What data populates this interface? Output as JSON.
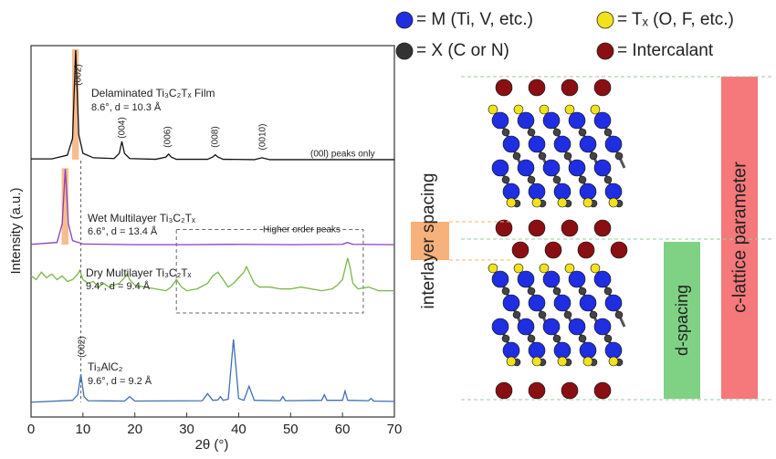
{
  "chart_data": {
    "type": "line",
    "x_label": "2θ (°)",
    "y_label": "Intensity (a.u.)",
    "xlim": [
      0,
      70
    ],
    "xticks": [
      0,
      10,
      20,
      30,
      40,
      50,
      60,
      70
    ],
    "ylim": [
      0,
      100
    ],
    "series": [
      {
        "color": "#111111",
        "x": [
          0,
          4,
          7,
          8,
          8.6,
          9.2,
          10,
          12,
          16,
          17,
          17.5,
          18,
          19,
          24,
          26,
          26.5,
          27,
          28,
          34,
          35,
          35.5,
          36,
          37,
          43,
          44.5,
          46,
          55,
          65,
          70
        ],
        "values": [
          69.5,
          69.5,
          70.5,
          75,
          98.8,
          76,
          71,
          69.8,
          69.6,
          71,
          74.2,
          71,
          69.6,
          69.4,
          70,
          70.8,
          70,
          69.4,
          69.4,
          70,
          70.6,
          70,
          69.4,
          69.3,
          69.8,
          69.3,
          69.3,
          69.3,
          69.3
        ]
      },
      {
        "color": "#8a3fb8",
        "x": [
          0,
          5,
          6,
          6.6,
          7.2,
          8,
          10,
          20,
          30,
          40,
          50,
          60,
          61,
          62,
          70
        ],
        "values": [
          46.5,
          47,
          52,
          66.8,
          52,
          47.5,
          46.6,
          46.4,
          46.4,
          46.5,
          46.4,
          46.5,
          47,
          46.5,
          46.4
        ]
      },
      {
        "color": "#7ab648",
        "x": [
          0,
          1,
          2,
          3,
          4,
          5,
          6,
          7,
          8,
          9,
          9.4,
          10,
          11,
          12,
          13,
          14,
          15,
          16,
          17,
          18,
          18.5,
          19,
          20,
          22,
          24,
          26,
          27,
          28,
          29,
          30,
          32,
          34,
          35,
          36,
          37,
          38,
          39,
          40,
          41,
          41.5,
          42,
          43,
          44,
          46,
          48,
          50,
          52,
          54,
          56,
          58,
          59,
          60,
          60.5,
          61,
          61.5,
          62,
          63,
          65,
          67,
          70
        ],
        "values": [
          38,
          37,
          39,
          37.5,
          38.5,
          37,
          38,
          36.5,
          37,
          38.5,
          39.5,
          37,
          36,
          36.5,
          35,
          36,
          35,
          35.5,
          36,
          37.5,
          38.5,
          37,
          35.5,
          35,
          34.5,
          34,
          35,
          37,
          35,
          34,
          34.5,
          36,
          38,
          39,
          37,
          35,
          36,
          37.5,
          39,
          40.5,
          39,
          36,
          35,
          35,
          34.5,
          34.5,
          35,
          34.5,
          34,
          34.5,
          35.5,
          37,
          40,
          42.8,
          40,
          36,
          34.5,
          35,
          34,
          34
        ]
      },
      {
        "color": "#3f6fb5",
        "x": [
          0,
          8,
          9,
          9.6,
          10.2,
          11,
          18,
          19,
          20,
          33,
          34,
          35,
          36,
          36.5,
          37,
          38,
          39,
          40,
          41,
          42,
          43,
          48,
          48.5,
          49,
          56,
          56.5,
          57,
          60,
          60.5,
          61,
          65,
          65.5,
          66,
          70
        ],
        "values": [
          4,
          4.5,
          6,
          11.5,
          5.5,
          4.4,
          4.3,
          5.5,
          4.3,
          4.4,
          6.3,
          4.5,
          4.6,
          5.5,
          4.5,
          4.8,
          20.9,
          5,
          4.5,
          8.3,
          4.5,
          4.4,
          5.5,
          4.4,
          4.5,
          6,
          4.5,
          4.5,
          7,
          4.5,
          4.4,
          5,
          4.3,
          4.2
        ]
      }
    ],
    "annotations": [
      "(002)",
      "(004)",
      "(006)",
      "(008)",
      "(0010)",
      "(00l) peaks only",
      "Delaminated Ti₃C₂Tₓ Film",
      "8.6°, d = 10.3 Å",
      "Wet Multilayer Ti₃C₂Tₓ",
      "6.6°, d = 13.4 Å",
      "Higher order peaks",
      "Dry Multilayer Ti₃C₂Tₓ",
      "9.4°, d = 9.4 Å",
      "(002)",
      "Ti₃AlC₂",
      "9.6°, d = 9.2 Å"
    ]
  },
  "diagram": {
    "legend": [
      "= M (Ti, V, etc.)",
      "= Tₓ (O, F, etc.)",
      "= X (C or N)",
      "= Intercalant"
    ],
    "labels": [
      "interlayer spacing",
      "d-spacing",
      "c-lattice parameter"
    ]
  }
}
